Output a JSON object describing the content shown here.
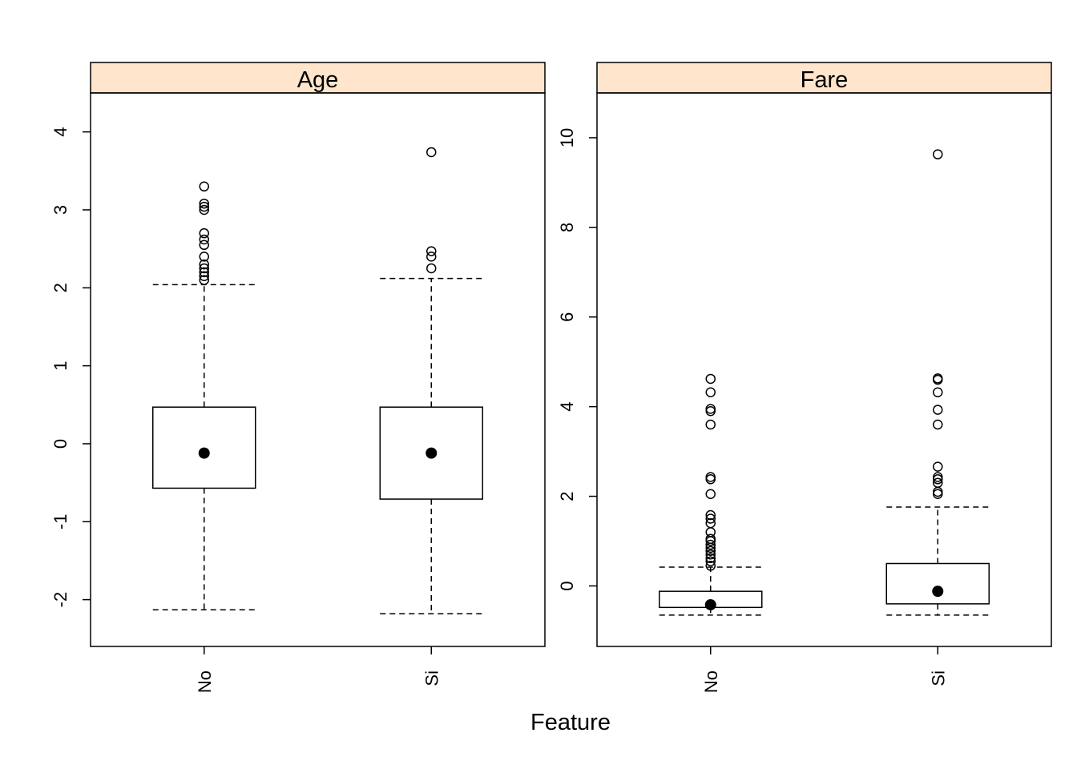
{
  "chart_data": {
    "type": "boxplot",
    "xlabel": "Feature",
    "strip_color": "#FFE5CC",
    "categories": [
      "No",
      "Si"
    ],
    "panels": [
      {
        "name": "Age",
        "ylim": [
          -2.6,
          4.5
        ],
        "yticks": [
          -2,
          -1,
          0,
          1,
          2,
          3,
          4
        ],
        "ytick_labels": [
          "-2",
          "-1",
          "0",
          "1",
          "2",
          "3",
          "4"
        ],
        "boxes": [
          {
            "category": "No",
            "whisker_low": -2.13,
            "q1": -0.57,
            "median": -0.12,
            "q3": 0.47,
            "whisker_high": 2.04,
            "outliers": [
              2.1,
              2.15,
              2.2,
              2.25,
              2.3,
              2.4,
              2.55,
              2.62,
              2.7,
              3.0,
              3.04,
              3.08,
              3.3
            ]
          },
          {
            "category": "Si",
            "whisker_low": -2.18,
            "q1": -0.71,
            "median": -0.12,
            "q3": 0.47,
            "whisker_high": 2.12,
            "outliers": [
              2.25,
              2.4,
              2.47,
              3.74
            ]
          }
        ]
      },
      {
        "name": "Fare",
        "ylim": [
          -1.35,
          11.0
        ],
        "yticks": [
          0,
          2,
          4,
          6,
          8,
          10
        ],
        "ytick_labels": [
          "0",
          "2",
          "4",
          "6",
          "8",
          "10"
        ],
        "boxes": [
          {
            "category": "No",
            "whisker_low": -0.65,
            "q1": -0.48,
            "median": -0.42,
            "q3": -0.12,
            "whisker_high": 0.42,
            "outliers": [
              0.45,
              0.55,
              0.62,
              0.7,
              0.78,
              0.85,
              0.92,
              1.0,
              1.05,
              1.2,
              1.4,
              1.5,
              1.58,
              2.05,
              2.38,
              2.43,
              3.6,
              3.9,
              3.95,
              4.32,
              4.62
            ]
          },
          {
            "category": "Si",
            "whisker_low": -0.65,
            "q1": -0.4,
            "median": -0.12,
            "q3": 0.5,
            "whisker_high": 1.76,
            "outliers": [
              2.05,
              2.1,
              2.3,
              2.38,
              2.43,
              2.66,
              3.6,
              3.93,
              4.32,
              4.6,
              4.63,
              9.63
            ]
          }
        ]
      }
    ]
  }
}
